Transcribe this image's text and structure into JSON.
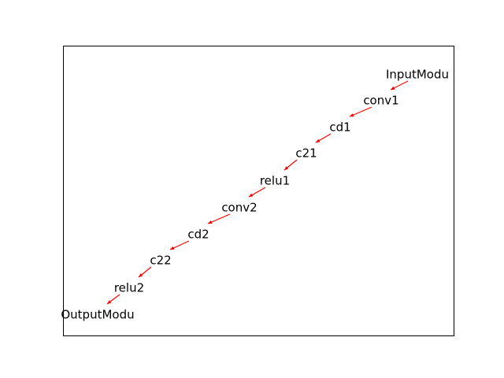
{
  "graph": {
    "edge_color": "#ff0000",
    "nodes": [
      {
        "id": "InputModu",
        "label": "InputModu"
      },
      {
        "id": "conv1",
        "label": "conv1"
      },
      {
        "id": "cd1",
        "label": "cd1"
      },
      {
        "id": "c21",
        "label": "c21"
      },
      {
        "id": "relu1",
        "label": "relu1"
      },
      {
        "id": "conv2",
        "label": "conv2"
      },
      {
        "id": "cd2",
        "label": "cd2"
      },
      {
        "id": "c22",
        "label": "c22"
      },
      {
        "id": "relu2",
        "label": "relu2"
      },
      {
        "id": "OutputModu",
        "label": "OutputModu"
      }
    ],
    "edges": [
      {
        "from": "InputModu",
        "to": "conv1"
      },
      {
        "from": "conv1",
        "to": "cd1"
      },
      {
        "from": "cd1",
        "to": "c21"
      },
      {
        "from": "c21",
        "to": "relu1"
      },
      {
        "from": "relu1",
        "to": "conv2"
      },
      {
        "from": "conv2",
        "to": "cd2"
      },
      {
        "from": "cd2",
        "to": "c22"
      },
      {
        "from": "c22",
        "to": "relu2"
      },
      {
        "from": "relu2",
        "to": "OutputModu"
      }
    ]
  }
}
